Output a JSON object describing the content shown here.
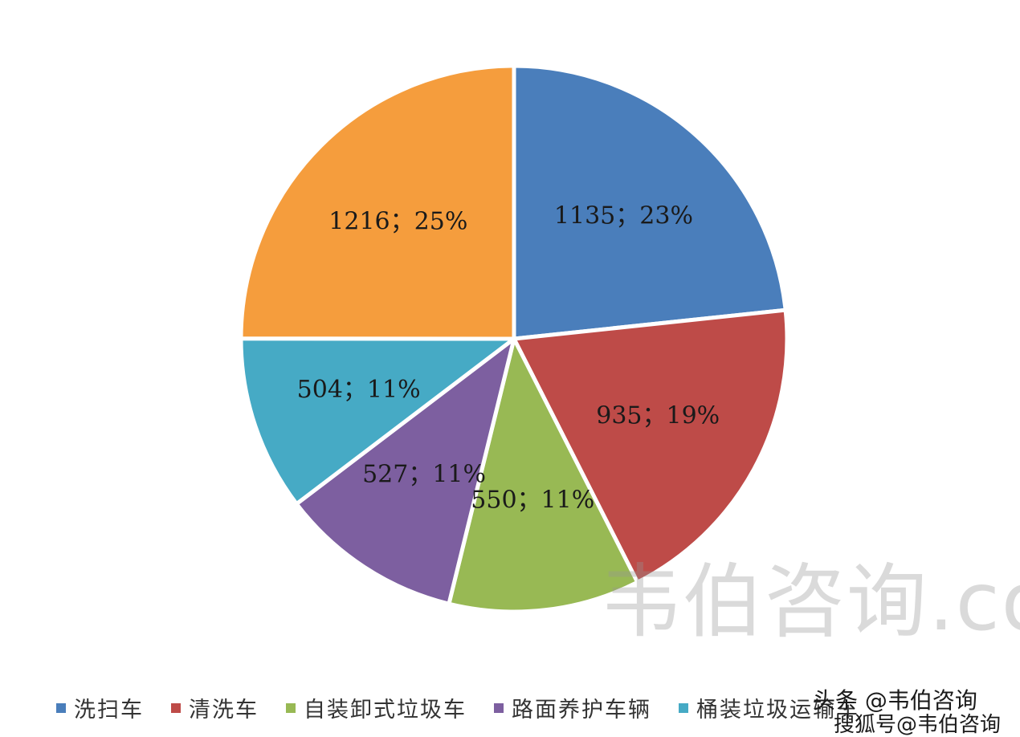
{
  "chart_data": {
    "type": "pie",
    "title": "",
    "slices": [
      {
        "name": "洗扫车",
        "value": 1135,
        "percent": 23,
        "label": "1135；23%",
        "color": "#4a7ebb"
      },
      {
        "name": "清洗车",
        "value": 935,
        "percent": 19,
        "label": "935；19%",
        "color": "#be4b48"
      },
      {
        "name": "自装卸式垃圾车",
        "value": 550,
        "percent": 11,
        "label": "550；11%",
        "color": "#98b954"
      },
      {
        "name": "路面养护车辆",
        "value": 527,
        "percent": 11,
        "label": "527；11%",
        "color": "#7d5fa0"
      },
      {
        "name": "桶装垃圾运输车",
        "value": 504,
        "percent": 11,
        "label": "504；11%",
        "color": "#46aac5"
      },
      {
        "name": "",
        "value": 1216,
        "percent": 25,
        "label": "1216；25%",
        "color": "#f59d3d"
      }
    ],
    "legend_position": "bottom"
  },
  "legend": [
    {
      "label": "洗扫车",
      "color": "#4a7ebb"
    },
    {
      "label": "清洗车",
      "color": "#be4b48"
    },
    {
      "label": "自装卸式垃圾车",
      "color": "#98b954"
    },
    {
      "label": "路面养护车辆",
      "color": "#7d5fa0"
    },
    {
      "label": "桶装垃圾运输车",
      "color": "#46aac5"
    }
  ],
  "watermark": "韦伯咨询.com",
  "credit": {
    "line1": "头条 @韦伯咨询",
    "line2": "搜狐号@韦伯咨询"
  }
}
